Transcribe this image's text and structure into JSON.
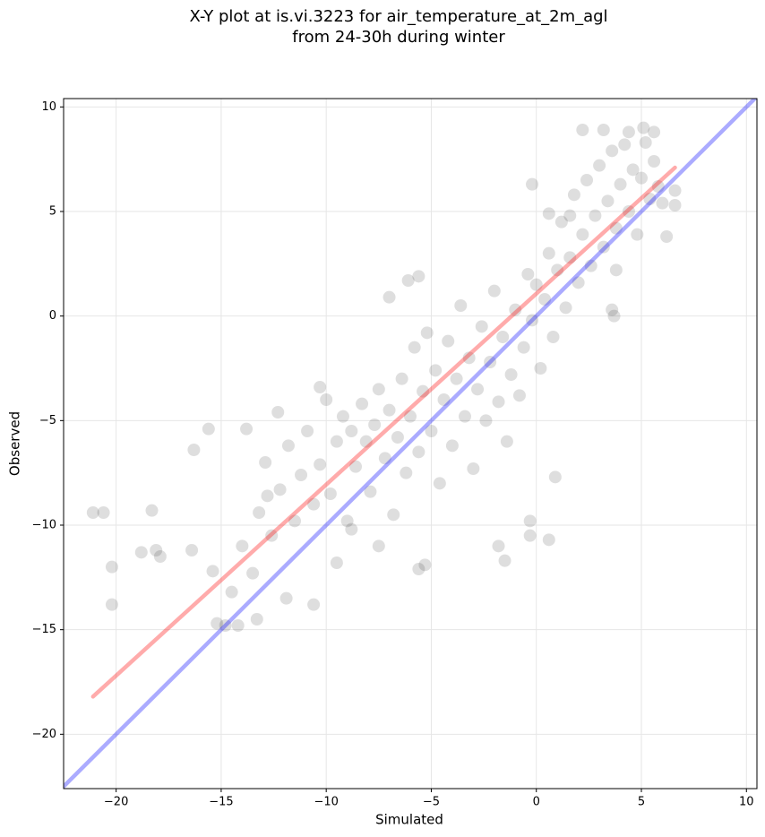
{
  "chart_data": {
    "type": "scatter",
    "title": [
      "X-Y plot at is.vi.3223 for air_temperature_at_2m_agl",
      "from 24-30h during winter"
    ],
    "x_label": "Simulated",
    "y_label": "Observed",
    "xlim": [
      -22.5,
      10.5
    ],
    "ylim": [
      -22.6,
      10.4
    ],
    "xticks": [
      {
        "value": -20,
        "label": "−20"
      },
      {
        "value": -15,
        "label": "−15"
      },
      {
        "value": -10,
        "label": "−10"
      },
      {
        "value": -5,
        "label": "−5"
      },
      0,
      5,
      10
    ],
    "yticks": [
      {
        "value": -20,
        "label": "−20"
      },
      {
        "value": -15,
        "label": "−15"
      },
      {
        "value": -10,
        "label": "−10"
      },
      {
        "value": -5,
        "label": "−5"
      },
      0,
      5,
      10
    ],
    "grid": true,
    "color": "#000000",
    "x": [
      -21.1,
      -20.6,
      -20.2,
      -20.2,
      -18.8,
      -18.3,
      -18.1,
      -17.9,
      -16.4,
      -16.3,
      -15.6,
      -15.4,
      -15.2,
      -14.8,
      -14.2,
      -13.3,
      -13.8,
      -12.8,
      -12.3,
      -11.9,
      -10.6,
      -10.3,
      -9.5,
      -8.8,
      -7.5,
      -7.0,
      -6.1,
      -5.6,
      -5.3,
      -5.6,
      -1.5,
      -1.8,
      -0.3,
      -0.3,
      0.6,
      0.9,
      3.7,
      3.6,
      3.8,
      6.2,
      6.6,
      6.6,
      2.2,
      3.2,
      5.1,
      5.6,
      4.4,
      -0.2,
      0.6,
      1.6,
      -14.5,
      -14.0,
      -13.5,
      -13.2,
      -12.9,
      -12.6,
      -12.2,
      -11.8,
      -11.5,
      -11.2,
      -10.9,
      -10.6,
      -10.3,
      -10.0,
      -9.8,
      -9.5,
      -9.2,
      -9.0,
      -8.8,
      -8.6,
      -8.3,
      -8.1,
      -7.9,
      -7.7,
      -7.5,
      -7.2,
      -7.0,
      -6.8,
      -6.6,
      -6.4,
      -6.2,
      -6.0,
      -5.8,
      -5.6,
      -5.4,
      -5.2,
      -5.0,
      -4.8,
      -4.6,
      -4.4,
      -4.2,
      -4.0,
      -3.8,
      -3.6,
      -3.4,
      -3.2,
      -3.0,
      -2.8,
      -2.6,
      -2.4,
      -2.2,
      -2.0,
      -1.8,
      -1.6,
      -1.4,
      -1.2,
      -1.0,
      -0.8,
      -0.6,
      -0.4,
      -0.2,
      0.0,
      0.2,
      0.4,
      0.6,
      0.8,
      1.0,
      1.2,
      1.4,
      1.6,
      1.8,
      2.0,
      2.2,
      2.4,
      2.6,
      2.8,
      3.0,
      3.2,
      3.4,
      3.6,
      3.8,
      4.0,
      4.2,
      4.4,
      4.6,
      4.8,
      5.0,
      5.2,
      5.4,
      5.6,
      5.8,
      6.0
    ],
    "y": [
      -9.4,
      -9.4,
      -12.0,
      -13.8,
      -11.3,
      -9.3,
      -11.2,
      -11.5,
      -11.2,
      -6.4,
      -5.4,
      -12.2,
      -14.7,
      -14.8,
      -14.8,
      -14.5,
      -5.4,
      -8.6,
      -4.6,
      -13.5,
      -13.8,
      -3.4,
      -11.8,
      -10.2,
      -11.0,
      0.9,
      1.7,
      -12.1,
      -11.9,
      1.9,
      -11.7,
      -11.0,
      -10.5,
      -9.8,
      -10.7,
      -7.7,
      0.0,
      0.3,
      2.2,
      3.8,
      6.0,
      5.3,
      8.9,
      8.9,
      9.0,
      8.8,
      8.8,
      6.3,
      4.9,
      4.8,
      -13.2,
      -11.0,
      -12.3,
      -9.4,
      -7.0,
      -10.5,
      -8.3,
      -6.2,
      -9.8,
      -7.6,
      -5.5,
      -9.0,
      -7.1,
      -4.0,
      -8.5,
      -6.0,
      -4.8,
      -9.8,
      -5.5,
      -7.2,
      -4.2,
      -6.0,
      -8.4,
      -5.2,
      -3.5,
      -6.8,
      -4.5,
      -9.5,
      -5.8,
      -3.0,
      -7.5,
      -4.8,
      -1.5,
      -6.5,
      -3.6,
      -0.8,
      -5.5,
      -2.6,
      -8.0,
      -4.0,
      -1.2,
      -6.2,
      -3.0,
      0.5,
      -4.8,
      -2.0,
      -7.3,
      -3.5,
      -0.5,
      -5.0,
      -2.2,
      1.2,
      -4.1,
      -1.0,
      -6.0,
      -2.8,
      0.3,
      -3.8,
      -1.5,
      2.0,
      -0.2,
      1.5,
      -2.5,
      0.8,
      3.0,
      -1.0,
      2.2,
      4.5,
      0.4,
      2.8,
      5.8,
      1.6,
      3.9,
      6.5,
      2.4,
      4.8,
      7.2,
      3.3,
      5.5,
      7.9,
      4.2,
      6.3,
      8.2,
      5.0,
      7.0,
      3.9,
      6.6,
      8.3,
      5.6,
      7.4,
      6.2,
      5.4
    ],
    "lines": [
      {
        "color": "#ff0000",
        "x": [
          -21.1,
          6.6
        ],
        "y": [
          -18.2,
          7.1
        ]
      },
      {
        "color": "#0000ff",
        "x": [
          -22.6,
          10.5
        ],
        "y": [
          -22.6,
          10.5
        ]
      }
    ]
  }
}
